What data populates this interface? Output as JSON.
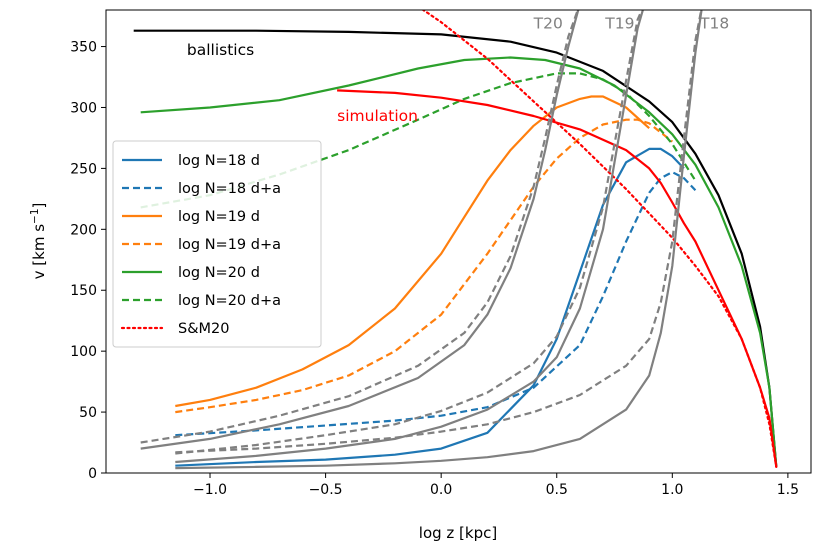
{
  "chart_data": {
    "type": "line",
    "title": "",
    "xlabel": "log z [kpc]",
    "ylabel_main": "v [km s",
    "ylabel_sup": "−1",
    "ylabel_close": "]",
    "xlim": [
      -1.45,
      1.6
    ],
    "ylim": [
      0,
      380
    ],
    "xticks": [
      -1.0,
      -0.5,
      0.0,
      0.5,
      1.0,
      1.5
    ],
    "xtick_labels": [
      "−1.0",
      "−0.5",
      "0.0",
      "0.5",
      "1.0",
      "1.5"
    ],
    "yticks": [
      0,
      50,
      100,
      150,
      200,
      250,
      300,
      350
    ],
    "ytick_labels": [
      "0",
      "50",
      "100",
      "150",
      "200",
      "250",
      "300",
      "350"
    ],
    "grid": false,
    "legend_position": "center-left",
    "series": [
      {
        "name": "ballistics",
        "legend": false,
        "color": "#000000",
        "dash": "solid",
        "x": [
          -1.33,
          -0.8,
          -0.4,
          0.0,
          0.3,
          0.5,
          0.7,
          0.9,
          1.0,
          1.1,
          1.2,
          1.3,
          1.38,
          1.42,
          1.45
        ],
        "y": [
          363,
          363,
          362,
          360,
          354,
          345,
          330,
          305,
          288,
          262,
          228,
          180,
          120,
          70,
          5
        ]
      },
      {
        "name": "log N=18 d",
        "legend": true,
        "color": "#1f77b4",
        "dash": "solid",
        "x": [
          -1.15,
          -0.8,
          -0.5,
          -0.2,
          0.0,
          0.2,
          0.4,
          0.5,
          0.6,
          0.7,
          0.8,
          0.9,
          0.95,
          1.0,
          1.05
        ],
        "y": [
          6,
          9,
          11,
          15,
          20,
          33,
          72,
          110,
          165,
          220,
          255,
          266,
          266,
          260,
          250
        ]
      },
      {
        "name": "log N=18 d+a",
        "legend": true,
        "color": "#1f77b4",
        "dash": "dashed",
        "x": [
          -1.15,
          -0.8,
          -0.5,
          -0.2,
          0.0,
          0.2,
          0.4,
          0.6,
          0.7,
          0.8,
          0.9,
          0.95,
          1.0,
          1.05,
          1.1
        ],
        "y": [
          31,
          35,
          39,
          43,
          47,
          54,
          70,
          105,
          145,
          190,
          230,
          242,
          247,
          242,
          232
        ]
      },
      {
        "name": "log N=19 d",
        "legend": true,
        "color": "#ff7f0e",
        "dash": "solid",
        "x": [
          -1.15,
          -1.0,
          -0.8,
          -0.6,
          -0.4,
          -0.2,
          0.0,
          0.1,
          0.2,
          0.3,
          0.4,
          0.5,
          0.6,
          0.65,
          0.7,
          0.8,
          0.9
        ],
        "y": [
          55,
          60,
          70,
          85,
          105,
          135,
          180,
          210,
          240,
          265,
          285,
          300,
          307,
          309,
          309,
          300,
          283
        ]
      },
      {
        "name": "log N=19 d+a",
        "legend": true,
        "color": "#ff7f0e",
        "dash": "dashed",
        "x": [
          -1.15,
          -1.0,
          -0.8,
          -0.6,
          -0.4,
          -0.2,
          0.0,
          0.2,
          0.4,
          0.5,
          0.6,
          0.7,
          0.8,
          0.85,
          0.9,
          1.0
        ],
        "y": [
          50,
          54,
          60,
          68,
          80,
          100,
          130,
          180,
          235,
          258,
          275,
          286,
          290,
          290,
          287,
          272
        ]
      },
      {
        "name": "log N=20 d",
        "legend": true,
        "color": "#2ca02c",
        "dash": "solid",
        "x": [
          -1.3,
          -1.0,
          -0.7,
          -0.4,
          -0.1,
          0.1,
          0.3,
          0.45,
          0.6,
          0.75,
          0.9,
          1.0,
          1.1,
          1.2,
          1.3,
          1.38,
          1.42,
          1.45
        ],
        "y": [
          296,
          300,
          306,
          318,
          332,
          339,
          341,
          339,
          332,
          318,
          296,
          278,
          253,
          218,
          170,
          115,
          70,
          5
        ]
      },
      {
        "name": "log N=20 d+a",
        "legend": true,
        "color": "#2ca02c",
        "dash": "dashed",
        "x": [
          -1.3,
          -1.0,
          -0.7,
          -0.4,
          -0.1,
          0.1,
          0.3,
          0.5,
          0.6,
          0.7,
          0.8,
          0.9,
          1.0,
          1.1
        ],
        "y": [
          218,
          228,
          245,
          265,
          290,
          307,
          320,
          328,
          328,
          323,
          312,
          293,
          270,
          240
        ]
      },
      {
        "name": "simulation",
        "legend": false,
        "color": "#ff0000",
        "dash": "solid",
        "x": [
          -0.45,
          -0.2,
          0.0,
          0.2,
          0.4,
          0.6,
          0.8,
          0.9,
          0.95,
          1.0,
          1.05,
          1.1,
          1.2,
          1.3,
          1.38,
          1.42,
          1.45
        ],
        "y": [
          314,
          312,
          308,
          302,
          293,
          282,
          265,
          250,
          238,
          222,
          205,
          190,
          150,
          110,
          70,
          45,
          5
        ]
      },
      {
        "name": "S&M20",
        "legend": true,
        "color": "#ff0000",
        "dash": "dotted",
        "x": [
          -0.1,
          0.0,
          0.2,
          0.4,
          0.6,
          0.8,
          1.0,
          1.1,
          1.2,
          1.3,
          1.38,
          1.42,
          1.45
        ],
        "y": [
          383,
          370,
          340,
          305,
          270,
          233,
          193,
          170,
          145,
          110,
          70,
          40,
          5
        ]
      },
      {
        "name": "T20 d",
        "legend": false,
        "color": "#808080",
        "dash": "solid",
        "x": [
          -1.3,
          -1.0,
          -0.7,
          -0.4,
          -0.1,
          0.1,
          0.2,
          0.3,
          0.4,
          0.45,
          0.5,
          0.55,
          0.6
        ],
        "y": [
          20,
          28,
          40,
          55,
          78,
          105,
          130,
          168,
          225,
          265,
          310,
          350,
          385
        ]
      },
      {
        "name": "T20 d+a",
        "legend": false,
        "color": "#808080",
        "dash": "dashed",
        "x": [
          -1.3,
          -1.0,
          -0.7,
          -0.4,
          -0.1,
          0.1,
          0.2,
          0.3,
          0.4,
          0.45,
          0.5,
          0.55,
          0.6
        ],
        "y": [
          25,
          34,
          47,
          63,
          88,
          115,
          140,
          178,
          235,
          275,
          318,
          358,
          385
        ]
      },
      {
        "name": "T19 d",
        "legend": false,
        "color": "#808080",
        "dash": "solid",
        "x": [
          -1.15,
          -0.8,
          -0.5,
          -0.2,
          0.0,
          0.2,
          0.4,
          0.5,
          0.6,
          0.7,
          0.75,
          0.8,
          0.85,
          0.88
        ],
        "y": [
          9,
          14,
          20,
          28,
          38,
          52,
          75,
          95,
          135,
          200,
          255,
          310,
          365,
          385
        ]
      },
      {
        "name": "T19 d+a",
        "legend": false,
        "color": "#808080",
        "dash": "dashed",
        "x": [
          -1.15,
          -0.8,
          -0.5,
          -0.2,
          0.0,
          0.2,
          0.4,
          0.5,
          0.6,
          0.7,
          0.75,
          0.8,
          0.85,
          0.88
        ],
        "y": [
          16,
          23,
          31,
          40,
          51,
          66,
          90,
          112,
          152,
          218,
          270,
          322,
          372,
          385
        ]
      },
      {
        "name": "T18 d",
        "legend": false,
        "color": "#808080",
        "dash": "solid",
        "x": [
          -1.15,
          -0.8,
          -0.5,
          -0.2,
          0.0,
          0.2,
          0.4,
          0.6,
          0.8,
          0.9,
          0.95,
          1.0,
          1.05,
          1.1,
          1.13
        ],
        "y": [
          4,
          5,
          6,
          8,
          10,
          13,
          18,
          28,
          52,
          80,
          115,
          170,
          260,
          345,
          385
        ]
      },
      {
        "name": "T18 d+a",
        "legend": false,
        "color": "#808080",
        "dash": "dashed",
        "x": [
          -1.15,
          -0.8,
          -0.5,
          -0.2,
          0.0,
          0.2,
          0.4,
          0.6,
          0.8,
          0.9,
          0.95,
          1.0,
          1.05,
          1.1,
          1.13
        ],
        "y": [
          17,
          20,
          24,
          29,
          34,
          40,
          50,
          64,
          88,
          110,
          140,
          190,
          275,
          355,
          385
        ]
      }
    ],
    "legend_entries": [
      {
        "label": "log N=18 d",
        "color": "#1f77b4",
        "dash": "solid"
      },
      {
        "label": "log N=18 d+a",
        "color": "#1f77b4",
        "dash": "dashed"
      },
      {
        "label": "log N=19 d",
        "color": "#ff7f0e",
        "dash": "solid"
      },
      {
        "label": "log N=19 d+a",
        "color": "#ff7f0e",
        "dash": "dashed"
      },
      {
        "label": "log N=20 d",
        "color": "#2ca02c",
        "dash": "solid"
      },
      {
        "label": "log N=20 d+a",
        "color": "#2ca02c",
        "dash": "dashed"
      },
      {
        "label": "S&M20",
        "color": "#ff0000",
        "dash": "dotted"
      }
    ],
    "annotations": [
      {
        "text": "ballistics",
        "color": "#000000",
        "x": -1.1,
        "y": 343
      },
      {
        "text": "simulation",
        "color": "#ff0000",
        "x": -0.45,
        "y": 289
      },
      {
        "text": "T20",
        "color": "#808080",
        "x": 0.4,
        "y": 365
      },
      {
        "text": "T19",
        "color": "#808080",
        "x": 0.71,
        "y": 365
      },
      {
        "text": "T18",
        "color": "#808080",
        "x": 1.12,
        "y": 365
      }
    ]
  }
}
